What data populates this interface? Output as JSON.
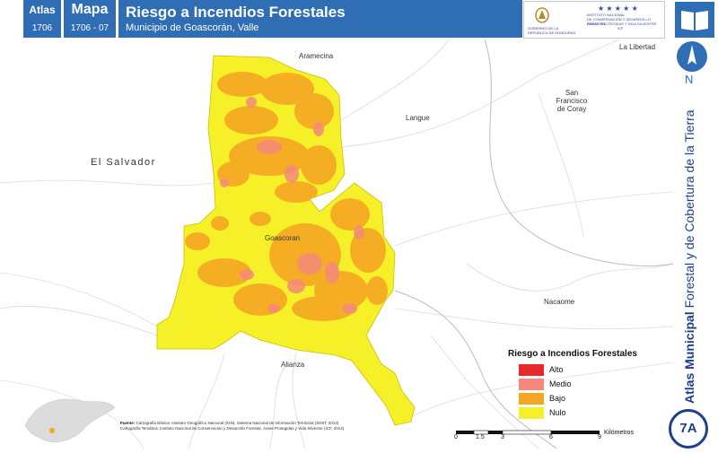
{
  "header": {
    "atlas_label": "Atlas",
    "atlas_number": "1706",
    "map_label": "Mapa",
    "map_number": "1706 - 07",
    "title": "Riesgo a Incendios Forestales",
    "subtitle": "Municipio de Goascorán, Valle",
    "logo_left_lines": [
      "GOBIERNO DE LA",
      "REPÚBLICA DE HONDURAS"
    ],
    "logo_right_lines": [
      "INSTITUTO NACIONAL",
      "DE CONSERVACIÓN Y DESARROLLO FORESTAL,",
      "ÁREAS PROTEGIDAS Y VIDA SILVESTRE",
      "ICF"
    ]
  },
  "north": {
    "label": "N"
  },
  "vertical_title": {
    "bold": "Atlas Municipal",
    "rest": " Forestal y de Cobertura de la Tierra"
  },
  "badge": "7A",
  "places": {
    "aramecina": "Aramecina",
    "la_libertad": "La Libertad",
    "san_francisco": [
      "San",
      "Francisco",
      "de Coray"
    ],
    "langue": "Langue",
    "el_salvador": "El Salvador",
    "goascoran": "Goascoran",
    "nacaome": "Nacaome",
    "alianza": "Alianza"
  },
  "legend": {
    "title": "Riesgo a Incendios Forestales",
    "items": [
      {
        "label": "Alto",
        "color": "#e8282b"
      },
      {
        "label": "Medio",
        "color": "#f4897c"
      },
      {
        "label": "Bajo",
        "color": "#f5a623"
      },
      {
        "label": "Nulo",
        "color": "#f5f028"
      }
    ]
  },
  "colors": {
    "brand_blue": "#2f6db5",
    "nulo": "#f5f028",
    "bajo": "#f5a623",
    "medio": "#f4897c"
  },
  "source": {
    "label": "Fuente:",
    "line1": "Cartografía Básica: Instituto Geográfico Nacional (IGN), Sistema Nacional de Información Territorial (SINIT, 2013)",
    "line2": "Cartografía Temática: Instituto Nacional de Conservación y Desarrollo Forestal, Áreas Protegidas y Vida Silvestre (ICF, 2014)"
  },
  "scale": {
    "ticks": [
      "0",
      "1.5",
      "3",
      "6",
      "9"
    ],
    "unit": "Kilómetros"
  }
}
